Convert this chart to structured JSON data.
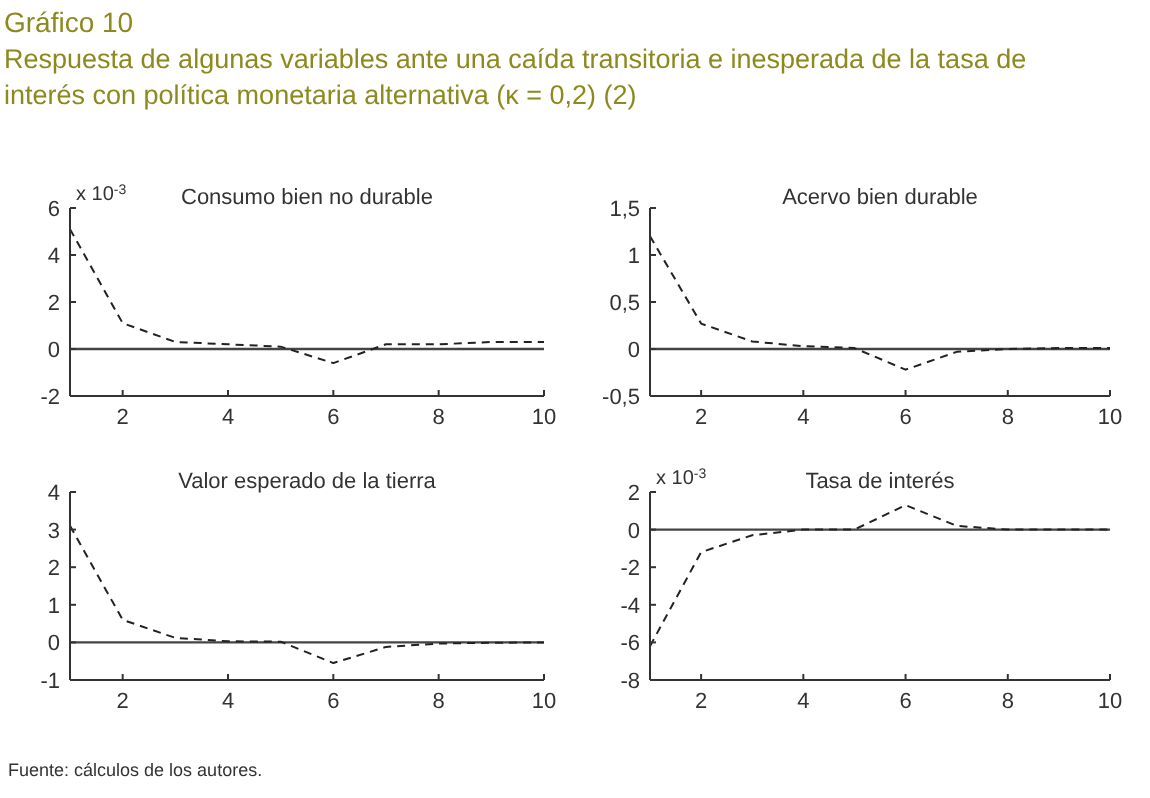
{
  "chart_data": [
    {
      "type": "line",
      "title": "Consumo bien no durable",
      "ylabel": "x 10$^{-3}$",
      "annotations": [
        "Gráfico 10",
        "Respuesta de algunas variables ante una caída transitoria e inesperada de la tasa de interés con política monetaria alternativa (κ = 0,2) (2)"
      ],
      "x": [
        1,
        2,
        3,
        4,
        5,
        6,
        7,
        8,
        9,
        10
      ],
      "series": [
        {
          "color": "#222222",
          "values": [
            5.1,
            1.1,
            0.3,
            0.2,
            0.1,
            -0.6,
            0.2,
            0.2,
            0.3,
            0.3
          ]
        }
      ],
      "xlim": [
        1,
        10
      ],
      "xticks": [
        2,
        4,
        6,
        8,
        10
      ],
      "ylim": [
        -2,
        6
      ],
      "yticks": [
        -2,
        0,
        2,
        4,
        6
      ],
      "ref_lines": [
        {
          "axis": "y",
          "value": 0,
          "color": "#444444",
          "line_style": "solid"
        }
      ],
      "grid": false,
      "marker": "none",
      "line_style": "dashed"
    },
    {
      "type": "line",
      "title": "Acervo bien durable",
      "x": [
        1,
        2,
        3,
        4,
        5,
        6,
        7,
        8,
        9,
        10
      ],
      "series": [
        {
          "color": "#222222",
          "values": [
            1.2,
            0.27,
            0.08,
            0.03,
            0.01,
            -0.22,
            -0.03,
            0,
            0.01,
            0.01
          ]
        }
      ],
      "xlim": [
        1,
        10
      ],
      "xticks": [
        2,
        4,
        6,
        8,
        10
      ],
      "ylim": [
        -0.5,
        1.5
      ],
      "yticks": [
        {
          "value": -0.5,
          "label": "-0,5"
        },
        0,
        {
          "value": 0.5,
          "label": "0,5"
        },
        1,
        {
          "value": 1.5,
          "label": "1,5"
        }
      ],
      "ref_lines": [
        {
          "axis": "y",
          "value": 0,
          "color": "#444444",
          "line_style": "solid"
        }
      ],
      "grid": false,
      "marker": "none",
      "line_style": "dashed"
    },
    {
      "type": "line",
      "title": "Valor esperado de la tierra",
      "annotations": [
        "Fuente: cálculos de los autores."
      ],
      "x": [
        1,
        2,
        3,
        4,
        5,
        6,
        7,
        8,
        9,
        10
      ],
      "series": [
        {
          "color": "#222222",
          "values": [
            3.1,
            0.6,
            0.12,
            0.03,
            0.02,
            -0.55,
            -0.12,
            -0.03,
            -0.01,
            0
          ]
        }
      ],
      "xlim": [
        1,
        10
      ],
      "xticks": [
        2,
        4,
        6,
        8,
        10
      ],
      "ylim": [
        -1,
        4
      ],
      "yticks": [
        -1,
        0,
        1,
        2,
        3,
        4
      ],
      "ref_lines": [
        {
          "axis": "y",
          "value": 0,
          "color": "#444444",
          "line_style": "solid"
        }
      ],
      "grid": false,
      "marker": "none",
      "line_style": "dashed"
    },
    {
      "type": "line",
      "title": "Tasa de interés",
      "ylabel": "x 10$^{-3}$",
      "x": [
        1,
        2,
        3,
        4,
        5,
        6,
        7,
        8,
        9,
        10
      ],
      "series": [
        {
          "color": "#222222",
          "values": [
            -6.2,
            -1.2,
            -0.3,
            0,
            0,
            1.3,
            0.2,
            0,
            0,
            0
          ]
        }
      ],
      "xlim": [
        1,
        10
      ],
      "xticks": [
        2,
        4,
        6,
        8,
        10
      ],
      "ylim": [
        -8,
        2
      ],
      "yticks": [
        -8,
        -6,
        -4,
        -2,
        0,
        2
      ],
      "ref_lines": [
        {
          "axis": "y",
          "value": 0,
          "color": "#444444",
          "line_style": "solid"
        }
      ],
      "grid": false,
      "marker": "none",
      "line_style": "dashed"
    }
  ]
}
